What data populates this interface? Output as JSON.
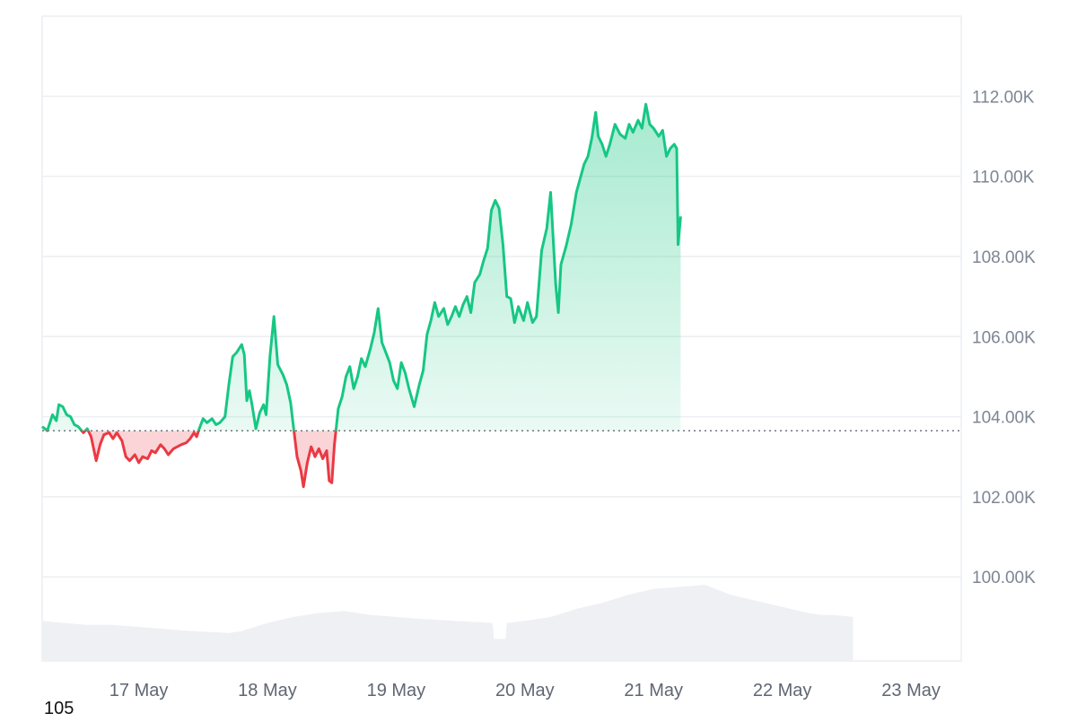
{
  "colors": {
    "up": "#16c784",
    "down": "#ea3943",
    "grid": "#eceef2",
    "volume": "#eef0f4"
  },
  "corner_label": "105",
  "chart_data": {
    "type": "area",
    "title": "",
    "xlabel": "",
    "ylabel": "",
    "x_ticks": [
      "17 May",
      "18 May",
      "19 May",
      "20 May",
      "21 May",
      "22 May",
      "23 May"
    ],
    "y_ticks": [
      "100.00K",
      "102.00K",
      "104.00K",
      "106.00K",
      "108.00K",
      "110.00K",
      "112.00K"
    ],
    "y_range": [
      97900,
      114000
    ],
    "x_range": [
      16.25,
      23.39
    ],
    "grid": true,
    "baseline": 103650,
    "series": [
      {
        "values": [
          [
            16.25,
            103750
          ],
          [
            16.29,
            103650
          ],
          [
            16.33,
            104050
          ],
          [
            16.36,
            103900
          ],
          [
            16.38,
            104300
          ],
          [
            16.41,
            104250
          ],
          [
            16.44,
            104050
          ],
          [
            16.47,
            104000
          ],
          [
            16.5,
            103800
          ],
          [
            16.53,
            103750
          ],
          [
            16.57,
            103600
          ],
          [
            16.6,
            103700
          ],
          [
            16.63,
            103500
          ],
          [
            16.67,
            102900
          ],
          [
            16.7,
            103300
          ],
          [
            16.73,
            103550
          ],
          [
            16.77,
            103600
          ],
          [
            16.8,
            103450
          ],
          [
            16.83,
            103600
          ],
          [
            16.87,
            103400
          ],
          [
            16.9,
            103000
          ],
          [
            16.93,
            102900
          ],
          [
            16.97,
            103050
          ],
          [
            17.0,
            102850
          ],
          [
            17.03,
            103000
          ],
          [
            17.07,
            102950
          ],
          [
            17.1,
            103150
          ],
          [
            17.13,
            103100
          ],
          [
            17.17,
            103300
          ],
          [
            17.2,
            103200
          ],
          [
            17.23,
            103050
          ],
          [
            17.27,
            103200
          ],
          [
            17.3,
            103250
          ],
          [
            17.33,
            103300
          ],
          [
            17.37,
            103350
          ],
          [
            17.4,
            103450
          ],
          [
            17.43,
            103600
          ],
          [
            17.45,
            103500
          ],
          [
            17.47,
            103700
          ],
          [
            17.5,
            103950
          ],
          [
            17.53,
            103850
          ],
          [
            17.57,
            103950
          ],
          [
            17.6,
            103800
          ],
          [
            17.63,
            103850
          ],
          [
            17.67,
            104000
          ],
          [
            17.7,
            104800
          ],
          [
            17.73,
            105500
          ],
          [
            17.76,
            105600
          ],
          [
            17.8,
            105800
          ],
          [
            17.82,
            105550
          ],
          [
            17.84,
            104400
          ],
          [
            17.86,
            104650
          ],
          [
            17.88,
            104300
          ],
          [
            17.91,
            103700
          ],
          [
            17.94,
            104100
          ],
          [
            17.97,
            104300
          ],
          [
            17.99,
            104050
          ],
          [
            18.02,
            105500
          ],
          [
            18.05,
            106500
          ],
          [
            18.08,
            105300
          ],
          [
            18.12,
            105050
          ],
          [
            18.15,
            104800
          ],
          [
            18.18,
            104350
          ],
          [
            18.2,
            103800
          ],
          [
            18.23,
            103000
          ],
          [
            18.26,
            102650
          ],
          [
            18.28,
            102250
          ],
          [
            18.31,
            102850
          ],
          [
            18.34,
            103250
          ],
          [
            18.37,
            103000
          ],
          [
            18.4,
            103200
          ],
          [
            18.43,
            102950
          ],
          [
            18.46,
            103150
          ],
          [
            18.48,
            102400
          ],
          [
            18.5,
            102350
          ],
          [
            18.52,
            103300
          ],
          [
            18.55,
            104200
          ],
          [
            18.58,
            104500
          ],
          [
            18.61,
            105000
          ],
          [
            18.64,
            105250
          ],
          [
            18.67,
            104700
          ],
          [
            18.7,
            105000
          ],
          [
            18.73,
            105450
          ],
          [
            18.76,
            105250
          ],
          [
            18.8,
            105700
          ],
          [
            18.83,
            106100
          ],
          [
            18.86,
            106700
          ],
          [
            18.89,
            105850
          ],
          [
            18.92,
            105600
          ],
          [
            18.95,
            105350
          ],
          [
            18.98,
            104900
          ],
          [
            19.01,
            104700
          ],
          [
            19.04,
            105350
          ],
          [
            19.07,
            105100
          ],
          [
            19.1,
            104700
          ],
          [
            19.14,
            104250
          ],
          [
            19.18,
            104800
          ],
          [
            19.21,
            105150
          ],
          [
            19.24,
            106050
          ],
          [
            19.27,
            106400
          ],
          [
            19.3,
            106850
          ],
          [
            19.33,
            106500
          ],
          [
            19.37,
            106700
          ],
          [
            19.4,
            106300
          ],
          [
            19.43,
            106500
          ],
          [
            19.46,
            106750
          ],
          [
            19.49,
            106500
          ],
          [
            19.52,
            106800
          ],
          [
            19.55,
            107000
          ],
          [
            19.58,
            106600
          ],
          [
            19.61,
            107350
          ],
          [
            19.65,
            107550
          ],
          [
            19.68,
            107900
          ],
          [
            19.71,
            108200
          ],
          [
            19.74,
            109150
          ],
          [
            19.77,
            109400
          ],
          [
            19.8,
            109200
          ],
          [
            19.83,
            108300
          ],
          [
            19.86,
            107000
          ],
          [
            19.89,
            106950
          ],
          [
            19.92,
            106350
          ],
          [
            19.95,
            106750
          ],
          [
            19.99,
            106400
          ],
          [
            20.02,
            106850
          ],
          [
            20.06,
            106350
          ],
          [
            20.09,
            106500
          ],
          [
            20.13,
            108150
          ],
          [
            20.17,
            108700
          ],
          [
            20.2,
            109600
          ],
          [
            20.24,
            107300
          ],
          [
            20.26,
            106600
          ],
          [
            20.28,
            107800
          ],
          [
            20.32,
            108250
          ],
          [
            20.36,
            108800
          ],
          [
            20.4,
            109600
          ],
          [
            20.43,
            109950
          ],
          [
            20.46,
            110300
          ],
          [
            20.49,
            110500
          ],
          [
            20.52,
            110950
          ],
          [
            20.55,
            111600
          ],
          [
            20.57,
            111000
          ],
          [
            20.6,
            110800
          ],
          [
            20.63,
            110500
          ],
          [
            20.66,
            110800
          ],
          [
            20.7,
            111300
          ],
          [
            20.74,
            111050
          ],
          [
            20.78,
            110950
          ],
          [
            20.81,
            111300
          ],
          [
            20.84,
            111100
          ],
          [
            20.88,
            111400
          ],
          [
            20.91,
            111200
          ],
          [
            20.94,
            111800
          ],
          [
            20.97,
            111300
          ],
          [
            21.0,
            111200
          ],
          [
            21.04,
            111000
          ],
          [
            21.07,
            111150
          ],
          [
            21.1,
            110500
          ],
          [
            21.13,
            110700
          ],
          [
            21.16,
            110800
          ],
          [
            21.18,
            110700
          ],
          [
            21.19,
            108300
          ],
          [
            21.21,
            109000
          ]
        ]
      }
    ],
    "volume": [
      [
        16.25,
        98900
      ],
      [
        16.42,
        98850
      ],
      [
        16.6,
        98800
      ],
      [
        16.8,
        98800
      ],
      [
        17.0,
        98750
      ],
      [
        17.2,
        98700
      ],
      [
        17.4,
        98650
      ],
      [
        17.7,
        98600
      ],
      [
        17.8,
        98650
      ],
      [
        18.0,
        98850
      ],
      [
        18.2,
        99000
      ],
      [
        18.4,
        99100
      ],
      [
        18.6,
        99150
      ],
      [
        18.8,
        99050
      ],
      [
        19.0,
        99000
      ],
      [
        19.2,
        98950
      ],
      [
        19.45,
        98900
      ],
      [
        19.75,
        98850
      ],
      [
        19.76,
        98450
      ],
      [
        19.85,
        98450
      ],
      [
        19.86,
        98850
      ],
      [
        20.0,
        98900
      ],
      [
        20.2,
        99000
      ],
      [
        20.4,
        99200
      ],
      [
        20.6,
        99350
      ],
      [
        20.8,
        99550
      ],
      [
        21.0,
        99700
      ],
      [
        21.2,
        99750
      ],
      [
        21.4,
        99800
      ],
      [
        21.6,
        99550
      ],
      [
        21.8,
        99400
      ],
      [
        22.0,
        99250
      ],
      [
        22.2,
        99100
      ],
      [
        22.3,
        99050
      ],
      [
        22.4,
        99050
      ],
      [
        22.55,
        99000
      ]
    ]
  }
}
